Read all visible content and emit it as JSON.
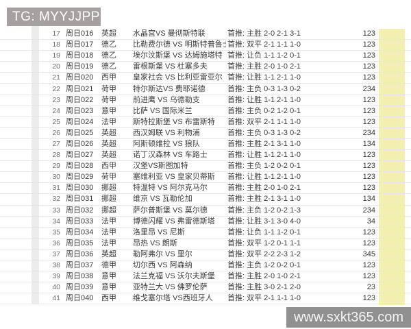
{
  "watermarks": {
    "tg": "TG: MYYJJPP",
    "site": "www.sxkt365.com"
  },
  "colors": {
    "highlight_column": "#f2efb0",
    "tg_banner_gray": "#a7a0a0",
    "site_banner_gray": "#7d7d7d",
    "row_line": "#e6e6e6"
  },
  "table": {
    "rec_prefix": "首推:",
    "rows": [
      {
        "no": "17",
        "code": "周日016",
        "league": "英超",
        "match": "水晶宫VS 曼彻斯特联",
        "rec": "首推: 主胜 2-0 2-1 3-1",
        "value": "123"
      },
      {
        "no": "18",
        "code": "周日017",
        "league": "德乙",
        "match": "比勒费尔德 VS 明斯特普鲁士",
        "rec": "首推: 双平 2-1 1-1 1-0",
        "value": "123"
      },
      {
        "no": "19",
        "code": "周日018",
        "league": "德乙",
        "match": "埃尔汶斯堡 VS 达姆施塔特",
        "rec": "首推: 让负 1-1 1-2 0-1",
        "value": "123"
      },
      {
        "no": "20",
        "code": "周日019",
        "league": "德乙",
        "match": "雷根斯堡 VS 杜塞多夫",
        "rec": "首推: 主胜 2-0 1-0 2-1",
        "value": "123"
      },
      {
        "no": "21",
        "code": "周日020",
        "league": "西甲",
        "match": "皇家社会 VS 比利亚雷亚尔",
        "rec": "首推: 让胜 1-1 2-1 1-0",
        "value": "123"
      },
      {
        "no": "22",
        "code": "周日021",
        "league": "荷甲",
        "match": "特尔斯达VS 费耶诺德",
        "rec": "首推: 主负 0-3 1-3 0-2",
        "value": "234"
      },
      {
        "no": "23",
        "code": "周日022",
        "league": "荷甲",
        "match": "前进鹰 VS 乌德勒支",
        "rec": "首推: 让胜 1-1 2-1 1-0",
        "value": "123"
      },
      {
        "no": "24",
        "code": "周日023",
        "league": "意甲",
        "match": "比萨 VS 国际米兰",
        "rec": "首推: 主负 0-2 1-2 0-1",
        "value": "123"
      },
      {
        "no": "25",
        "code": "周日024",
        "league": "法甲",
        "match": "斯特拉斯堡 VS 布雷斯特",
        "rec": "首推: 双平 2-1 1-1 1-0",
        "value": "123"
      },
      {
        "no": "26",
        "code": "周日025",
        "league": "英超",
        "match": "西汉姆联 VS 利物浦",
        "rec": "首推: 主负 0-3 1-3 0-2",
        "value": "234"
      },
      {
        "no": "27",
        "code": "周日026",
        "league": "英超",
        "match": "阿斯顿维拉 VS 狼队",
        "rec": "首推: 主胜 2-1 3-1 1-0",
        "value": "134"
      },
      {
        "no": "28",
        "code": "周日027",
        "league": "英超",
        "match": "诺丁汉森林 VS 车路士",
        "rec": "首推: 让胜 1-1 2-1 1-0",
        "value": "123"
      },
      {
        "no": "29",
        "code": "周日028",
        "league": "西甲",
        "match": "汉堡VS斯图加特",
        "rec": "首推: 主负 1-2 0-2 0-1",
        "value": "123"
      },
      {
        "no": "30",
        "code": "周日029",
        "league": "荷甲",
        "match": "塞维利亚 VS 皇家贝蒂斯",
        "rec": "首推: 让胜 1-1 2-1 1-0",
        "value": "123"
      },
      {
        "no": "31",
        "code": "周日030",
        "league": "挪超",
        "match": "特温特 VS 阿尔克马尔",
        "rec": "首推: 主胜 2-0 1-0 2-1",
        "value": "123"
      },
      {
        "no": "32",
        "code": "周日031",
        "league": "挪超",
        "match": "维京 VS 瓦勒伦加",
        "rec": "首推: 主胜 2-1 3-1 1-0",
        "value": "134"
      },
      {
        "no": "33",
        "code": "周日032",
        "league": "挪超",
        "match": "萨尔普斯堡 VS 莫尔德",
        "rec": "首推: 主负 1-2 0-2 1-3",
        "value": "234"
      },
      {
        "no": "34",
        "code": "周日033",
        "league": "法甲",
        "match": "博德闪耀 VS 弗雷德斯塔",
        "rec": "首推: 让胜 3-1 3-0 4-0",
        "value": "34"
      },
      {
        "no": "35",
        "code": "周日034",
        "league": "法甲",
        "match": "洛里昂 VS 尼斯",
        "rec": "首推: 让负 1-1 1-2 0-1",
        "value": "123"
      },
      {
        "no": "36",
        "code": "周日035",
        "league": "法甲",
        "match": "昂热 VS 朗斯",
        "rec": "首推: 双平 1-2 0-1 1-1",
        "value": "123"
      },
      {
        "no": "37",
        "code": "周日036",
        "league": "英超",
        "match": "勒阿弗尔 VS 里尔",
        "rec": "首推: 双平 2-2 2-3 1-2",
        "value": "345"
      },
      {
        "no": "38",
        "code": "周日037",
        "league": "德甲",
        "match": "切尔西 VS 阿森纳",
        "rec": "首推: 主负 1-2 0-2 0-1",
        "value": "123"
      },
      {
        "no": "39",
        "code": "周日038",
        "league": "意甲",
        "match": "法兰克福 VS 沃尔夫斯堡",
        "rec": "首推: 主胜 2-0 1-0 2-1",
        "value": "123"
      },
      {
        "no": "40",
        "code": "周日039",
        "league": "意甲",
        "match": "亚特兰大 VS 佛罗伦萨",
        "rec": "首推: 主胜 3-0 2-1 2-0",
        "value": "23"
      },
      {
        "no": "41",
        "code": "周日040",
        "league": "西甲",
        "match": "维戈塞尔塔 VS西班牙人",
        "rec": "首推: 双平 2-1 1-1 1-0",
        "value": "123"
      }
    ]
  }
}
